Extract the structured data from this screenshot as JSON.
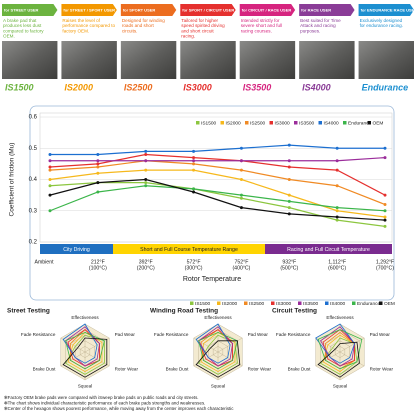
{
  "products": [
    {
      "banner": "for STREET USER",
      "description": "A brake pad that produces less dust compared to factory OEM.",
      "label": "IS1500",
      "color": "#6cb33f"
    },
    {
      "banner": "for STREET / SPORT USER",
      "description": "Raises the level of performance compared to factory OEM.",
      "label": "IS2000",
      "color": "#f39800"
    },
    {
      "banner": "for SPORT USER",
      "description": "Designed for winding roads and short circuits.",
      "label": "IS2500",
      "color": "#ec6d1f"
    },
    {
      "banner": "for SPORT / CIRCUIT USER",
      "description": "Tailored for higher speed spirited driving and short circuit racing.",
      "label": "IS3000",
      "color": "#e5302e"
    },
    {
      "banner": "for CIRCUIT / RACE USER",
      "description": "Intended strictly for severe short and full racing courses.",
      "label": "IS3500",
      "color": "#d6247f"
    },
    {
      "banner": "for RACE USER",
      "description": "Best suited for Time Attack and racing purposes.",
      "label": "IS4000",
      "color": "#8a3c97"
    },
    {
      "banner": "for ENDURANCE RACE USER",
      "description": "Exclusively designed for endurance racing.",
      "label": "Endurance",
      "color": "#1c8fd0"
    }
  ],
  "chart_data": [
    {
      "type": "line",
      "y_label": "Coefficient of friction (Mu)",
      "x_label": "Rotor Temperature",
      "categories": [
        "Ambient",
        "212°F",
        "392°F",
        "572°F",
        "752°F",
        "932°F",
        "1,112°F",
        "1,292°F"
      ],
      "sub_labels": [
        null,
        "(100°C)",
        "(200°C)",
        "(300°C)",
        "(400°C)",
        "(500°C)",
        "(600°C)",
        "(700°C)"
      ],
      "ylim": [
        0.2,
        0.6
      ],
      "yticks": [
        0.2,
        0.3,
        0.4,
        0.5,
        0.6
      ],
      "grid": true,
      "bands": [
        {
          "label": "City Driving",
          "color": "#1f6fc0"
        },
        {
          "label": "Short and Full Course Temperature Range",
          "color": "#ffd400"
        },
        {
          "label": "Racing and Full Circuit Temperature",
          "color": "#7a2b8f"
        }
      ],
      "series": [
        {
          "name": "IS1500",
          "color": "#8cc63f",
          "values": [
            0.38,
            0.39,
            0.39,
            0.37,
            0.34,
            0.31,
            0.27,
            0.25
          ]
        },
        {
          "name": "IS2000",
          "color": "#f6b81c",
          "values": [
            0.4,
            0.42,
            0.43,
            0.43,
            0.4,
            0.35,
            0.3,
            0.28
          ]
        },
        {
          "name": "IS2500",
          "color": "#f08a24",
          "values": [
            0.43,
            0.44,
            0.46,
            0.45,
            0.43,
            0.4,
            0.38,
            0.32
          ]
        },
        {
          "name": "IS3000",
          "color": "#e5302e",
          "values": [
            0.44,
            0.45,
            0.48,
            0.47,
            0.46,
            0.44,
            0.43,
            0.35
          ]
        },
        {
          "name": "IS3500",
          "color": "#9b2d9b",
          "values": [
            0.46,
            0.46,
            0.46,
            0.46,
            0.46,
            0.46,
            0.46,
            0.47
          ]
        },
        {
          "name": "IS4000",
          "color": "#1c6fd0",
          "values": [
            0.48,
            0.48,
            0.49,
            0.49,
            0.5,
            0.51,
            0.5,
            0.5
          ]
        },
        {
          "name": "Endurance",
          "color": "#3bb54a",
          "values": [
            0.3,
            0.36,
            0.38,
            0.37,
            0.35,
            0.33,
            0.31,
            0.3
          ]
        },
        {
          "name": "OEM",
          "color": "#111111",
          "values": [
            0.35,
            0.39,
            0.4,
            0.36,
            0.31,
            0.29,
            0.28,
            0.27
          ]
        }
      ]
    },
    {
      "type": "radar",
      "panels": [
        "Street Testing",
        "Winding Road Testing",
        "Circuit Testing"
      ],
      "axes": [
        "Effectiveness",
        "Pad Wear",
        "Rotor Wear",
        "Squeal",
        "Brake Dust",
        "Fade Resistance"
      ],
      "rlim": [
        0,
        5
      ],
      "rticks": [
        1,
        2,
        3,
        4,
        5
      ],
      "series": [
        {
          "name": "IS1500",
          "color": "#8cc63f",
          "values": [
            [
              3,
              4,
              4,
              4,
              4,
              2
            ],
            [
              3,
              3.5,
              4,
              4,
              4,
              2
            ],
            [
              2.5,
              3,
              3.5,
              4,
              4,
              1.5
            ]
          ]
        },
        {
          "name": "IS2000",
          "color": "#f6b81c",
          "values": [
            [
              3.5,
              3.5,
              3.5,
              3.5,
              3.5,
              2.5
            ],
            [
              3.5,
              3.5,
              3.5,
              3.5,
              3.5,
              3
            ],
            [
              3,
              3,
              3,
              3.5,
              3.5,
              2.5
            ]
          ]
        },
        {
          "name": "IS2500",
          "color": "#f08a24",
          "values": [
            [
              4,
              3,
              3,
              3,
              3,
              3
            ],
            [
              4,
              3,
              3,
              3,
              3,
              3.5
            ],
            [
              3.5,
              3,
              3,
              3,
              3,
              3
            ]
          ]
        },
        {
          "name": "IS3000",
          "color": "#e5302e",
          "values": [
            [
              4,
              3,
              3,
              2.5,
              2.5,
              3.5
            ],
            [
              4,
              3,
              3,
              2.5,
              2.5,
              4
            ],
            [
              4,
              3,
              3,
              2.5,
              2.5,
              3.5
            ]
          ]
        },
        {
          "name": "IS3500",
          "color": "#9b2d9b",
          "values": [
            [
              4.5,
              3,
              2.5,
              2.5,
              2,
              4
            ],
            [
              4.5,
              3,
              2.5,
              2.5,
              2,
              4
            ],
            [
              4.5,
              3,
              2.5,
              2.5,
              2,
              4
            ]
          ]
        },
        {
          "name": "IS4000",
          "color": "#1c6fd0",
          "values": [
            [
              5,
              2.5,
              2,
              2,
              2,
              4.5
            ],
            [
              5,
              2.5,
              2,
              2,
              2,
              4.5
            ],
            [
              5,
              3,
              2,
              2,
              2,
              5
            ]
          ]
        },
        {
          "name": "Endurance",
          "color": "#3bb54a",
          "values": [
            [
              3.5,
              4,
              3,
              3,
              3,
              4
            ],
            [
              3.5,
              4,
              3,
              3,
              3,
              4
            ],
            [
              4,
              4.5,
              3.5,
              3,
              3,
              4.5
            ]
          ]
        },
        {
          "name": "OEM",
          "color": "#111111",
          "values": [
            [
              2.5,
              4.5,
              4.5,
              4.5,
              4.5,
              1.5
            ],
            [
              2,
              4,
              4.5,
              4.5,
              4.5,
              1.5
            ],
            [
              1.5,
              3.5,
              4,
              4.5,
              4.5,
              1
            ]
          ]
        }
      ]
    }
  ],
  "footnotes": [
    "✻Factory OEM brake pads were compared with iSweep brake pads on public roads and city streets.",
    "✻The chart shows individual characteristic performance of each brake pads strengths and weaknesses.",
    "✻Center of the hexagon shows poorest performance, while moving away from the center improves each characteristic"
  ]
}
